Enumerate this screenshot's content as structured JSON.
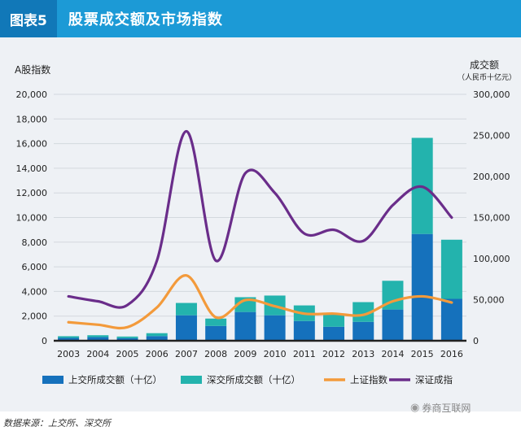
{
  "header": {
    "tag": "图表5",
    "title": "股票成交额及市场指数"
  },
  "source": "数据来源：上交所、深交所",
  "watermark": {
    "icon": "wechat-icon",
    "text": "券商互联网"
  },
  "colors": {
    "sse_turnover": "#1571bc",
    "szse_turnover": "#23b3ad",
    "sse_index": "#f39a3b",
    "szse_component": "#6a2d8a"
  },
  "chart_data": {
    "type": "bar",
    "categories": [
      "2003",
      "2004",
      "2005",
      "2006",
      "2007",
      "2008",
      "2009",
      "2010",
      "2011",
      "2012",
      "2013",
      "2014",
      "2015",
      "2016"
    ],
    "left_axis": {
      "label": "A股指数",
      "range": [
        0,
        20000
      ],
      "ticks": [
        "0",
        "2,000",
        "4,000",
        "6,000",
        "8,000",
        "10,000",
        "12,000",
        "14,000",
        "16,000",
        "18,000",
        "20,000"
      ]
    },
    "right_axis": {
      "label": "成交额",
      "sublabel": "（人民币十亿元）",
      "range": [
        0,
        300000
      ],
      "ticks": [
        "0",
        "50,000",
        "100,000",
        "150,000",
        "200,000",
        "250,000",
        "300,000"
      ]
    },
    "series": [
      {
        "name": "上交所成交额（十亿）",
        "type": "bar",
        "axis": "right",
        "values": [
          3500,
          4400,
          3100,
          5700,
          31000,
          18000,
          35000,
          31000,
          24000,
          17000,
          23000,
          38000,
          130000,
          51000
        ]
      },
      {
        "name": "深交所成交额（十亿）",
        "type": "bar",
        "axis": "right",
        "values": [
          2000,
          2300,
          2000,
          3500,
          15000,
          9000,
          18000,
          24000,
          19000,
          15000,
          24000,
          35000,
          117000,
          72000
        ]
      },
      {
        "name": "上证指数",
        "type": "line",
        "axis": "left",
        "values": [
          1500,
          1300,
          1100,
          2700,
          5300,
          1900,
          3300,
          2800,
          2200,
          2200,
          2100,
          3200,
          3600,
          3100
        ]
      },
      {
        "name": "深证成指",
        "type": "line",
        "axis": "left",
        "values": [
          3600,
          3200,
          2900,
          6500,
          17000,
          6500,
          13600,
          12000,
          8700,
          9000,
          8100,
          11000,
          12500,
          10000
        ]
      }
    ],
    "legend": "bottom",
    "grid": true
  }
}
